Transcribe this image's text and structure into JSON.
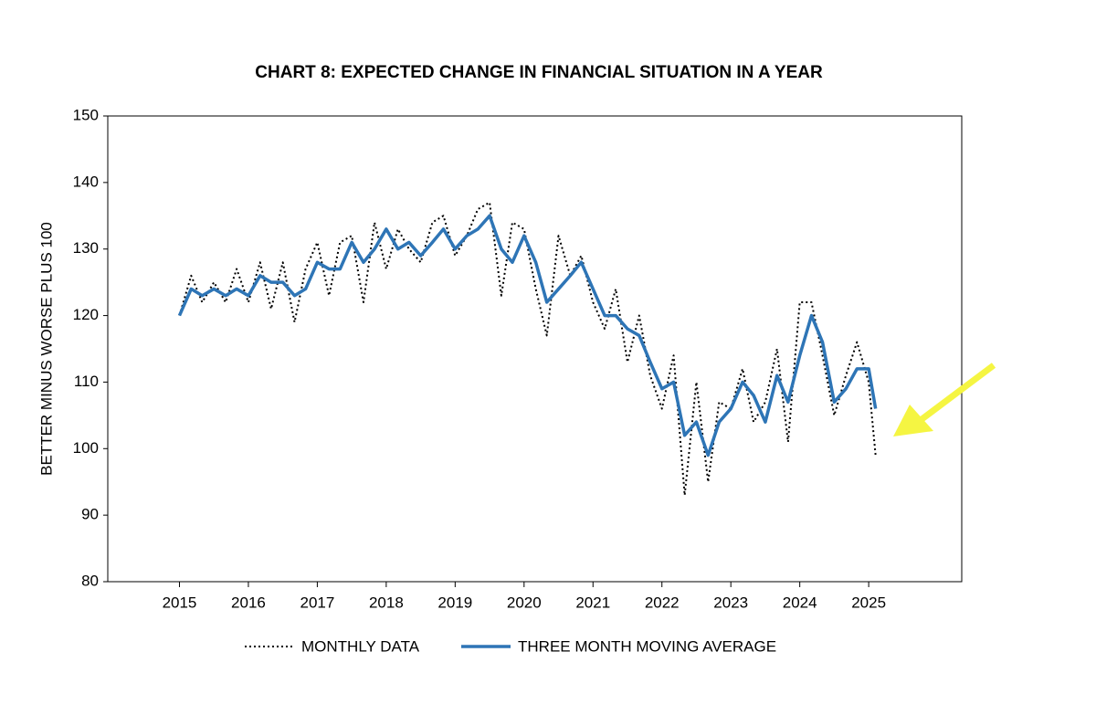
{
  "chart_data": {
    "type": "line",
    "title": "CHART 8: EXPECTED CHANGE IN FINANCIAL SITUATION IN A YEAR",
    "y_label": "BETTER MINUS WORSE PLUS 100",
    "x": [
      2015.0,
      2015.17,
      2015.33,
      2015.5,
      2015.67,
      2015.83,
      2016.0,
      2016.17,
      2016.33,
      2016.5,
      2016.67,
      2016.83,
      2017.0,
      2017.17,
      2017.33,
      2017.5,
      2017.67,
      2017.83,
      2018.0,
      2018.17,
      2018.33,
      2018.5,
      2018.67,
      2018.83,
      2019.0,
      2019.17,
      2019.33,
      2019.5,
      2019.67,
      2019.83,
      2020.0,
      2020.17,
      2020.33,
      2020.5,
      2020.67,
      2020.83,
      2021.0,
      2021.17,
      2021.33,
      2021.5,
      2021.67,
      2021.83,
      2022.0,
      2022.17,
      2022.33,
      2022.5,
      2022.67,
      2022.83,
      2023.0,
      2023.17,
      2023.33,
      2023.5,
      2023.67,
      2023.83,
      2024.0,
      2024.17,
      2024.33,
      2024.5,
      2024.67,
      2024.83,
      2025.0,
      2025.1
    ],
    "series": [
      {
        "name": "MONTHLY DATA",
        "color": "#000000",
        "dashed": true,
        "values": [
          120,
          126,
          122,
          125,
          122,
          127,
          122,
          128,
          121,
          128,
          119,
          127,
          131,
          123,
          131,
          132,
          122,
          134,
          127,
          133,
          130,
          128,
          134,
          135,
          129,
          132,
          136,
          137,
          123,
          134,
          133,
          124,
          117,
          132,
          126,
          129,
          122,
          118,
          124,
          113,
          120,
          111,
          106,
          114,
          93,
          110,
          95,
          107,
          106,
          112,
          104,
          107,
          115,
          101,
          122,
          122,
          114,
          105,
          111,
          116,
          110,
          99
        ]
      },
      {
        "name": "THREE MONTH MOVING AVERAGE",
        "color": "#2e75b6",
        "dashed": false,
        "values": [
          120,
          124,
          123,
          124,
          123,
          124,
          123,
          126,
          125,
          125,
          123,
          124,
          128,
          127,
          127,
          131,
          128,
          130,
          133,
          130,
          131,
          129,
          131,
          133,
          130,
          132,
          133,
          135,
          130,
          128,
          132,
          128,
          122,
          124,
          126,
          128,
          124,
          120,
          120,
          118,
          117,
          113,
          109,
          110,
          102,
          104,
          99,
          104,
          106,
          110,
          108,
          104,
          111,
          107,
          114,
          120,
          116,
          107,
          109,
          112,
          112,
          106
        ]
      }
    ],
    "xlim": [
      2013.96,
      2026.35
    ],
    "xticks": [
      2015,
      2016,
      2017,
      2018,
      2019,
      2020,
      2021,
      2022,
      2023,
      2024,
      2025
    ],
    "ylim": [
      80,
      150
    ],
    "yticks": [
      80,
      90,
      100,
      110,
      120,
      130,
      140,
      150
    ],
    "grid": false
  }
}
